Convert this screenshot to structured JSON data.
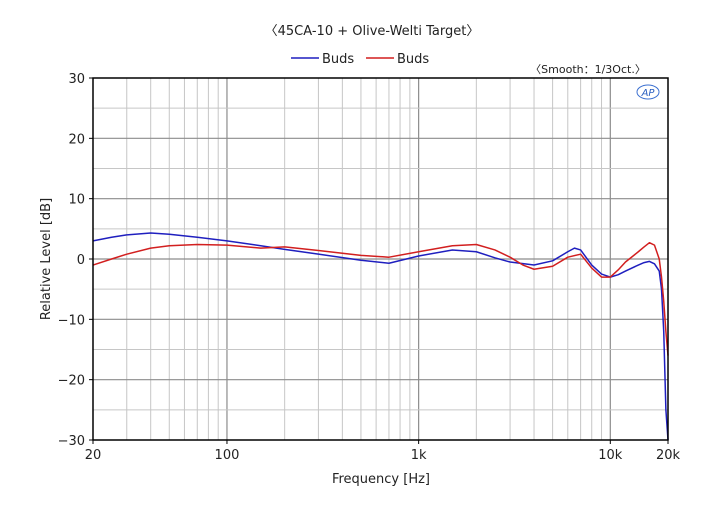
{
  "chart_data": {
    "type": "line",
    "title": "〈45CA-10 + Olive-Welti Target〉",
    "subtitle": "〈Smooth：1/3Oct.〉",
    "xlabel": "Frequency [Hz]",
    "ylabel": "Relative Level [dB]",
    "x_scale": "log",
    "xlim": [
      20,
      20000
    ],
    "ylim": [
      -30,
      30
    ],
    "grid": true,
    "legend_position": "top-center",
    "x_ticks": [
      {
        "value": 20,
        "label": "20"
      },
      {
        "value": 100,
        "label": "100"
      },
      {
        "value": 1000,
        "label": "1k"
      },
      {
        "value": 10000,
        "label": "10k"
      },
      {
        "value": 20000,
        "label": "20k"
      }
    ],
    "y_ticks": [
      {
        "value": 30,
        "label": "30"
      },
      {
        "value": 20,
        "label": "20"
      },
      {
        "value": 10,
        "label": "10"
      },
      {
        "value": 0,
        "label": "0"
      },
      {
        "value": -10,
        "label": "-10"
      },
      {
        "value": -20,
        "label": "-20"
      },
      {
        "value": -30,
        "label": "-30"
      }
    ],
    "series": [
      {
        "name": "Buds",
        "color": "#1f1fbf",
        "x": [
          20,
          25,
          30,
          40,
          50,
          70,
          100,
          150,
          200,
          300,
          500,
          700,
          1000,
          1500,
          2000,
          2500,
          3000,
          4000,
          5000,
          6000,
          6500,
          7000,
          8000,
          9000,
          10000,
          11000,
          12000,
          14000,
          15000,
          16000,
          17000,
          18000,
          18500,
          19000,
          19500,
          20000
        ],
        "y": [
          3,
          3.6,
          4,
          4.3,
          4.1,
          3.6,
          3,
          2.2,
          1.6,
          0.8,
          -0.2,
          -0.7,
          0.5,
          1.5,
          1.2,
          0.2,
          -0.5,
          -1,
          -0.3,
          1.2,
          1.8,
          1.5,
          -1,
          -2.5,
          -3,
          -2.6,
          -2,
          -1,
          -0.6,
          -0.4,
          -0.8,
          -2,
          -5,
          -12,
          -25,
          -30
        ]
      },
      {
        "name": "Buds",
        "color": "#d21f1f",
        "x": [
          20,
          25,
          30,
          40,
          50,
          70,
          100,
          150,
          200,
          300,
          500,
          700,
          1000,
          1500,
          2000,
          2500,
          3000,
          3500,
          4000,
          5000,
          6000,
          7000,
          8000,
          9000,
          10000,
          11000,
          12000,
          14000,
          15000,
          16000,
          17000,
          18000,
          18500,
          19000,
          19500,
          20000
        ],
        "y": [
          -1,
          0,
          0.8,
          1.8,
          2.2,
          2.4,
          2.3,
          1.8,
          2,
          1.4,
          0.6,
          0.3,
          1.2,
          2.2,
          2.4,
          1.5,
          0.3,
          -1,
          -1.7,
          -1.2,
          0.3,
          0.8,
          -1.5,
          -3,
          -3,
          -1.8,
          -0.5,
          1.2,
          2,
          2.7,
          2.3,
          0,
          -3,
          -7,
          -12,
          -16
        ]
      }
    ]
  }
}
